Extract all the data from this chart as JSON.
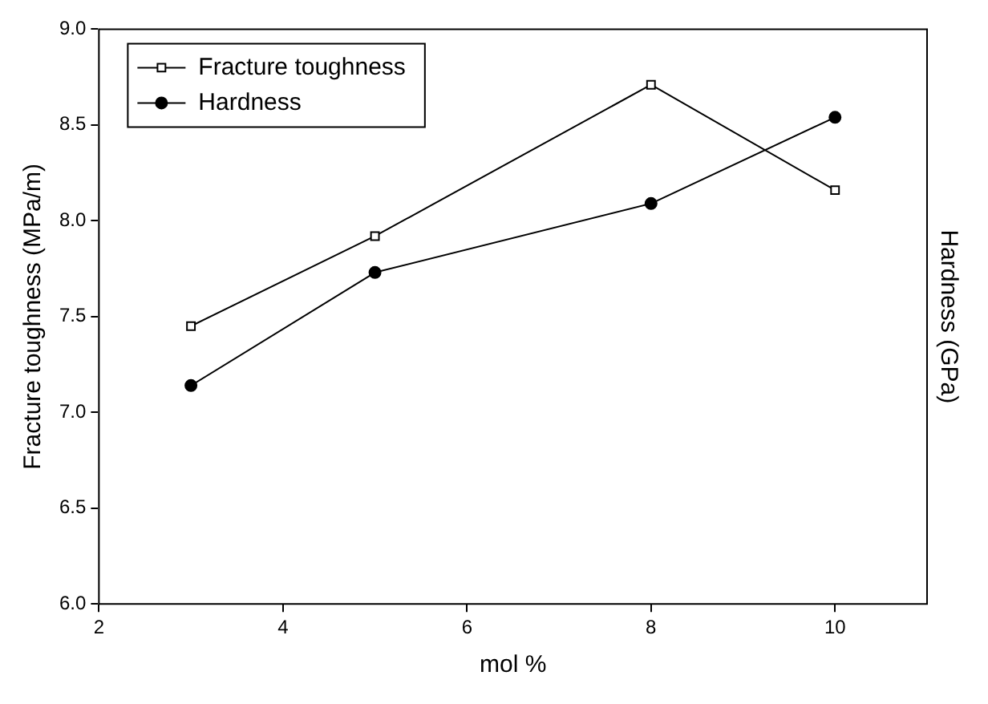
{
  "chart_data": {
    "type": "line",
    "xlabel": "mol %",
    "ylabel": "Fracture toughness (MPa/m)",
    "y2label": "Hardness (GPa)",
    "x": [
      3,
      5,
      8,
      10
    ],
    "series": [
      {
        "name": "Fracture toughness",
        "color": "#000000",
        "marker": "square",
        "values": [
          7.45,
          7.92,
          8.71,
          8.16
        ]
      },
      {
        "name": "Hardness",
        "color": "#000000",
        "marker": "circle",
        "values": [
          7.14,
          7.73,
          8.09,
          8.54
        ]
      }
    ],
    "xlim": [
      2,
      11
    ],
    "xticks": [
      2,
      4,
      6,
      8,
      10
    ],
    "ylim": [
      6,
      9
    ],
    "yticks": [
      {
        "value": 6,
        "label": "6.0"
      },
      {
        "value": 6.5,
        "label": "6.5"
      },
      {
        "value": 7,
        "label": "7.0"
      },
      {
        "value": 7.5,
        "label": "7.5"
      },
      {
        "value": 8,
        "label": "8.0"
      },
      {
        "value": 8.5,
        "label": "8.5"
      },
      {
        "value": 9,
        "label": "9.0"
      }
    ],
    "grid": false,
    "legend": "top left",
    "line_style": "solid"
  }
}
